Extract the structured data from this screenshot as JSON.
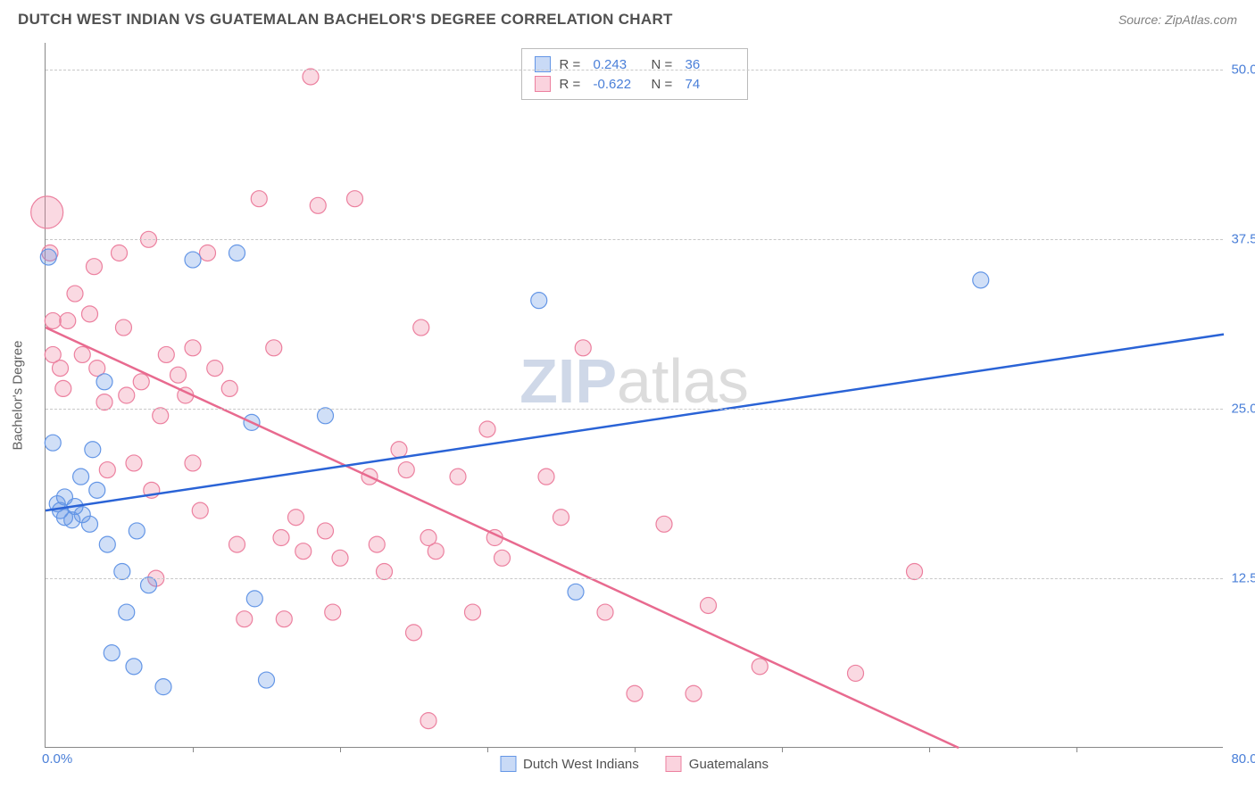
{
  "header": {
    "title": "DUTCH WEST INDIAN VS GUATEMALAN BACHELOR'S DEGREE CORRELATION CHART",
    "source": "Source: ZipAtlas.com"
  },
  "watermark": {
    "a": "ZIP",
    "b": "atlas"
  },
  "ylabel": "Bachelor's Degree",
  "axes": {
    "xlim": [
      0,
      80
    ],
    "ylim": [
      0,
      52
    ],
    "xtick_start": "0.0%",
    "xtick_end": "80.0%",
    "xticks_at": [
      10,
      20,
      30,
      40,
      50,
      60,
      70
    ],
    "yticks": [
      {
        "v": 12.5,
        "label": "12.5%"
      },
      {
        "v": 25.0,
        "label": "25.0%"
      },
      {
        "v": 37.5,
        "label": "37.5%"
      },
      {
        "v": 50.0,
        "label": "50.0%"
      }
    ],
    "grid_color": "#c8c8c8"
  },
  "stats": {
    "rows": [
      {
        "swatch": "blue",
        "R_label": "R =",
        "R": "0.243",
        "N_label": "N =",
        "N": "36"
      },
      {
        "swatch": "pink",
        "R_label": "R =",
        "R": "-0.622",
        "N_label": "N =",
        "N": "74"
      }
    ]
  },
  "legend": {
    "items": [
      {
        "swatch": "blue",
        "label": "Dutch West Indians"
      },
      {
        "swatch": "pink",
        "label": "Guatemalans"
      }
    ]
  },
  "series": {
    "blue": {
      "fill": "rgba(100,150,230,0.30)",
      "stroke": "#6496e6",
      "stroke_width": 1.2,
      "radius": 9,
      "trend": {
        "x1": 0,
        "y1": 17.5,
        "x2": 80,
        "y2": 30.5,
        "color": "#2a63d6",
        "width": 2.5
      },
      "points": [
        [
          0.2,
          36.2
        ],
        [
          0.5,
          22.5
        ],
        [
          0.8,
          18.0
        ],
        [
          1.0,
          17.5
        ],
        [
          1.3,
          17.0
        ],
        [
          1.3,
          18.5
        ],
        [
          1.8,
          16.8
        ],
        [
          2.0,
          17.8
        ],
        [
          2.4,
          20.0
        ],
        [
          2.5,
          17.2
        ],
        [
          3.0,
          16.5
        ],
        [
          3.2,
          22.0
        ],
        [
          3.5,
          19.0
        ],
        [
          4.0,
          27.0
        ],
        [
          4.2,
          15.0
        ],
        [
          4.5,
          7.0
        ],
        [
          5.2,
          13.0
        ],
        [
          5.5,
          10.0
        ],
        [
          6.0,
          6.0
        ],
        [
          6.2,
          16.0
        ],
        [
          7.0,
          12.0
        ],
        [
          8.0,
          4.5
        ],
        [
          10.0,
          36.0
        ],
        [
          13.0,
          36.5
        ],
        [
          14.0,
          24.0
        ],
        [
          14.2,
          11.0
        ],
        [
          15.0,
          5.0
        ],
        [
          19.0,
          24.5
        ],
        [
          33.5,
          33.0
        ],
        [
          36.0,
          11.5
        ],
        [
          63.5,
          34.5
        ]
      ]
    },
    "pink": {
      "fill": "rgba(240,130,160,0.30)",
      "stroke": "#ec809f",
      "stroke_width": 1.2,
      "radius": 9,
      "trend": {
        "x1": 0,
        "y1": 31.0,
        "x2": 62,
        "y2": 0,
        "color": "#e86a8f",
        "width": 2.5
      },
      "points": [
        [
          0.1,
          39.5,
          18
        ],
        [
          0.3,
          36.5
        ],
        [
          0.5,
          31.5
        ],
        [
          0.5,
          29.0
        ],
        [
          1.0,
          28.0
        ],
        [
          1.2,
          26.5
        ],
        [
          1.5,
          31.5
        ],
        [
          2.0,
          33.5
        ],
        [
          2.5,
          29.0
        ],
        [
          3.0,
          32.0
        ],
        [
          3.3,
          35.5
        ],
        [
          3.5,
          28.0
        ],
        [
          4.0,
          25.5
        ],
        [
          4.2,
          20.5
        ],
        [
          5.0,
          36.5
        ],
        [
          5.3,
          31.0
        ],
        [
          5.5,
          26.0
        ],
        [
          6.0,
          21.0
        ],
        [
          6.5,
          27.0
        ],
        [
          7.0,
          37.5
        ],
        [
          7.2,
          19.0
        ],
        [
          7.5,
          12.5
        ],
        [
          7.8,
          24.5
        ],
        [
          8.2,
          29.0
        ],
        [
          9.0,
          27.5
        ],
        [
          9.5,
          26.0
        ],
        [
          10.0,
          21.0
        ],
        [
          10.0,
          29.5
        ],
        [
          10.5,
          17.5
        ],
        [
          11.0,
          36.5
        ],
        [
          11.5,
          28.0
        ],
        [
          12.5,
          26.5
        ],
        [
          13.0,
          15.0
        ],
        [
          13.5,
          9.5
        ],
        [
          14.5,
          40.5
        ],
        [
          15.5,
          29.5
        ],
        [
          16.0,
          15.5
        ],
        [
          16.2,
          9.5
        ],
        [
          17.0,
          17.0
        ],
        [
          17.5,
          14.5
        ],
        [
          18.0,
          49.5
        ],
        [
          18.5,
          40.0
        ],
        [
          19.0,
          16.0
        ],
        [
          19.5,
          10.0
        ],
        [
          20.0,
          14.0
        ],
        [
          21.0,
          40.5
        ],
        [
          22.0,
          20.0
        ],
        [
          22.5,
          15.0
        ],
        [
          23.0,
          13.0
        ],
        [
          24.0,
          22.0
        ],
        [
          24.5,
          20.5
        ],
        [
          25.0,
          8.5
        ],
        [
          25.5,
          31.0
        ],
        [
          26.0,
          15.5
        ],
        [
          26.0,
          2.0
        ],
        [
          26.5,
          14.5
        ],
        [
          28.0,
          20.0
        ],
        [
          29.0,
          10.0
        ],
        [
          30.0,
          23.5
        ],
        [
          30.5,
          15.5
        ],
        [
          31.0,
          14.0
        ],
        [
          34.0,
          20.0
        ],
        [
          35.0,
          17.0
        ],
        [
          36.5,
          29.5
        ],
        [
          38.0,
          10.0
        ],
        [
          40.0,
          4.0
        ],
        [
          42.0,
          16.5
        ],
        [
          44.0,
          4.0
        ],
        [
          45.0,
          10.5
        ],
        [
          48.5,
          6.0
        ],
        [
          55.0,
          5.5
        ],
        [
          59.0,
          13.0
        ]
      ]
    }
  }
}
